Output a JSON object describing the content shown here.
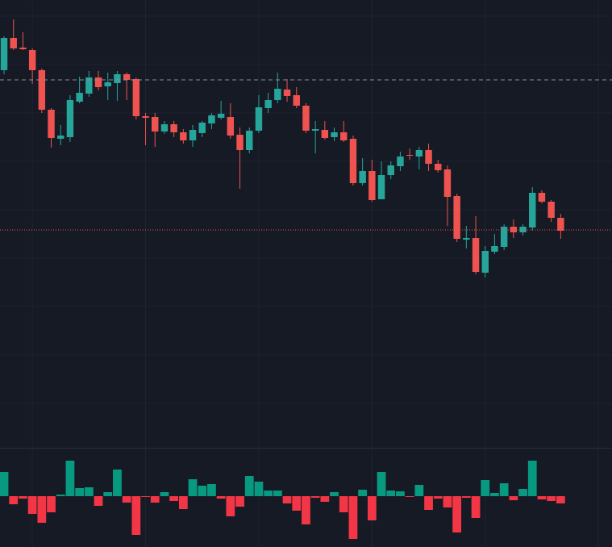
{
  "chart_data": [
    {
      "type": "candlestick",
      "x": [
        0,
        1,
        2,
        3,
        4,
        5,
        6,
        7,
        8,
        9,
        10,
        11,
        12,
        13,
        14,
        15,
        16,
        17,
        18,
        19,
        20,
        21,
        22,
        23,
        24,
        25,
        26,
        27,
        28,
        29,
        30,
        31,
        32,
        33,
        34,
        35,
        36,
        37,
        38,
        39,
        40,
        41,
        42,
        43,
        44,
        45,
        46,
        47,
        48,
        49,
        50,
        51,
        52,
        53,
        54,
        55,
        56,
        57,
        58,
        59
      ],
      "open": [
        513,
        553,
        541,
        538,
        513,
        464,
        428,
        430,
        474,
        484,
        504,
        493,
        497,
        508,
        502,
        456,
        455,
        437,
        446,
        436,
        426,
        435,
        447,
        454,
        455,
        433,
        414,
        438,
        466,
        476,
        489,
        482,
        469,
        438,
        439,
        430,
        436,
        428,
        373,
        388,
        353,
        383,
        394,
        408,
        406,
        414,
        397,
        390,
        357,
        303,
        305,
        262,
        288,
        294,
        319,
        312,
        318,
        361,
        350,
        330
      ],
      "high": [
        555,
        576,
        560,
        540,
        515,
        466,
        445,
        482,
        505,
        512,
        512,
        510,
        512,
        510,
        504,
        460,
        460,
        450,
        450,
        440,
        445,
        450,
        460,
        475,
        472,
        442,
        442,
        482,
        485,
        510,
        502,
        492,
        472,
        450,
        450,
        442,
        450,
        432,
        404,
        402,
        400,
        400,
        412,
        416,
        418,
        422,
        402,
        395,
        360,
        320,
        332,
        295,
        310,
        322,
        328,
        322,
        368,
        364,
        352,
        335
      ],
      "low": [
        508,
        538,
        538,
        496,
        460,
        417,
        420,
        424,
        472,
        480,
        488,
        476,
        475,
        476,
        452,
        420,
        418,
        434,
        430,
        422,
        418,
        430,
        440,
        452,
        428,
        366,
        410,
        435,
        460,
        472,
        474,
        466,
        435,
        410,
        427,
        425,
        424,
        370,
        370,
        350,
        353,
        378,
        388,
        402,
        390,
        388,
        386,
        320,
        300,
        292,
        260,
        256,
        285,
        290,
        305,
        308,
        314,
        348,
        325,
        304
      ],
      "close": [
        553,
        540,
        539,
        513,
        464,
        429,
        432,
        476,
        485,
        504,
        492,
        498,
        508,
        501,
        456,
        454,
        437,
        446,
        436,
        426,
        439,
        448,
        457,
        459,
        432,
        414,
        438,
        467,
        476,
        490,
        481,
        469,
        438,
        440,
        429,
        436,
        426,
        373,
        388,
        352,
        383,
        395,
        406,
        407,
        414,
        397,
        389,
        356,
        304,
        305,
        263,
        289,
        295,
        319,
        312,
        319,
        361,
        350,
        330,
        314
      ],
      "up_color": "#26a69a",
      "down_color": "#ef5350",
      "xlim": [
        -0.43,
        64.44
      ],
      "ylim": [
        45,
        600
      ],
      "xticks": [
        3,
        15,
        27,
        39,
        51,
        63
      ],
      "yticks": [
        580,
        520,
        460,
        400,
        340,
        280,
        220,
        160,
        100
      ],
      "grid": true,
      "price_lines": [
        {
          "value": 501,
          "color": "#8a8f9c",
          "style": "dashed"
        },
        {
          "value": 315,
          "color": "#ef5350",
          "style": "dotted"
        }
      ]
    },
    {
      "type": "histogram",
      "x": [
        0,
        1,
        2,
        3,
        4,
        5,
        6,
        7,
        8,
        9,
        10,
        11,
        12,
        13,
        14,
        15,
        16,
        17,
        18,
        19,
        20,
        21,
        22,
        23,
        24,
        25,
        26,
        27,
        28,
        29,
        30,
        31,
        32,
        33,
        34,
        35,
        36,
        37,
        38,
        39,
        40,
        41,
        42,
        43,
        44,
        45,
        46,
        47,
        48,
        49,
        50,
        51,
        52,
        53,
        54,
        55,
        56,
        57,
        58,
        59
      ],
      "values": [
        30,
        -10,
        -3,
        -22,
        -33,
        -20,
        2,
        44,
        10,
        11,
        -12,
        5,
        33,
        -8,
        -48,
        -1,
        -8,
        5,
        -6,
        -16,
        21,
        13,
        15,
        -3,
        -25,
        -13,
        25,
        18,
        7,
        7,
        -9,
        -18,
        -35,
        -2,
        -7,
        5,
        -20,
        -53,
        8,
        -30,
        30,
        7,
        6,
        -1,
        14,
        -17,
        -3,
        -14,
        -45,
        -2,
        -27,
        20,
        4,
        16,
        -5,
        9,
        44,
        -4,
        -6,
        -9
      ],
      "up_color": "#089981",
      "down_color": "#f23645",
      "xlim": [
        -0.43,
        64.44
      ],
      "ylim": [
        -63,
        59
      ],
      "xticks": [
        3,
        15,
        27,
        39,
        51,
        63
      ],
      "grid": true
    }
  ]
}
